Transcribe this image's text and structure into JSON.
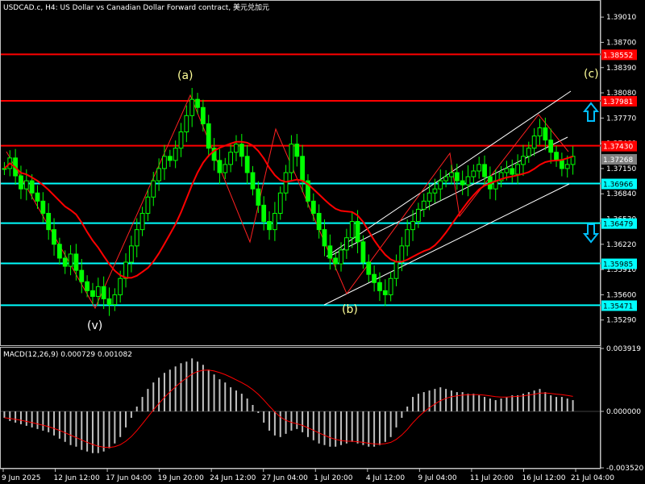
{
  "chart_data": {
    "type": "candlestick",
    "title": "USDCAD.c, H4:  US Dollar vs Canadian Dollar Forward contract, 美元兑加元",
    "symbol": "USDCAD.c",
    "timeframe": "H4",
    "price_axis": {
      "range": [
        1.3498,
        1.392
      ],
      "ticks": [
        "1.39010",
        "1.38700",
        "1.38390",
        "1.38080",
        "1.37770",
        "1.37460",
        "1.37150",
        "1.36840",
        "1.36530",
        "1.36220",
        "1.35910",
        "1.35600",
        "1.35290"
      ]
    },
    "time_axis": {
      "labels": [
        "9 Jun 2025",
        "12 Jun 12:00",
        "17 Jun 04:00",
        "19 Jun 20:00",
        "24 Jun 12:00",
        "27 Jun 04:00",
        "1 Jul 20:00",
        "4 Jul 12:00",
        "9 Jul 04:00",
        "11 Jul 20:00",
        "16 Jul 12:00",
        "21 Jul 04:00"
      ]
    },
    "close_series": [
      1.3715,
      1.3728,
      1.3706,
      1.369,
      1.37,
      1.3685,
      1.3675,
      1.366,
      1.364,
      1.3622,
      1.3605,
      1.3595,
      1.361,
      1.359,
      1.3576,
      1.3565,
      1.3558,
      1.357,
      1.3555,
      1.3548,
      1.356,
      1.358,
      1.36,
      1.362,
      1.364,
      1.366,
      1.368,
      1.37,
      1.3715,
      1.373,
      1.3725,
      1.374,
      1.376,
      1.378,
      1.38,
      1.379,
      1.377,
      1.374,
      1.3725,
      1.371,
      1.372,
      1.3735,
      1.3745,
      1.373,
      1.371,
      1.369,
      1.367,
      1.365,
      1.364,
      1.366,
      1.3685,
      1.371,
      1.3745,
      1.373,
      1.37,
      1.3675,
      1.366,
      1.364,
      1.362,
      1.3605,
      1.3598,
      1.3615,
      1.363,
      1.365,
      1.3625,
      1.36,
      1.3585,
      1.3575,
      1.3565,
      1.356,
      1.358,
      1.36,
      1.362,
      1.364,
      1.365,
      1.3665,
      1.3675,
      1.3685,
      1.369,
      1.37,
      1.3705,
      1.371,
      1.37,
      1.3695,
      1.3705,
      1.3712,
      1.372,
      1.3705,
      1.369,
      1.37,
      1.371,
      1.3715,
      1.3708,
      1.372,
      1.373,
      1.374,
      1.3755,
      1.3765,
      1.375,
      1.3735,
      1.3725,
      1.3715,
      1.372,
      1.373
    ],
    "horizontal_levels": [
      {
        "price": "1.38552",
        "color": "#ff0000"
      },
      {
        "price": "1.37981",
        "color": "#ff0000"
      },
      {
        "price": "1.37430",
        "color": "#ff0000"
      },
      {
        "price": "1.36966",
        "color": "#00ffff"
      },
      {
        "price": "1.36479",
        "color": "#00ffff"
      },
      {
        "price": "1.35985",
        "color": "#00ffff"
      },
      {
        "price": "1.35471",
        "color": "#00ffff"
      }
    ],
    "current_price": "1.37268",
    "wave_labels": [
      "(a)",
      "(v)",
      "(b)",
      "(c)"
    ],
    "macd": {
      "label": "MACD(12,26,9) 0.000729 0.001082",
      "range": [
        -0.00352,
        0.003919
      ],
      "ticks": [
        "0.003919",
        "0.000000",
        "-0.003520"
      ],
      "histogram": [
        -0.0004,
        -0.0006,
        -0.0007,
        -0.0008,
        -0.0009,
        -0.001,
        -0.0011,
        -0.0012,
        -0.0013,
        -0.0015,
        -0.0017,
        -0.0019,
        -0.0021,
        -0.0022,
        -0.0024,
        -0.0025,
        -0.0026,
        -0.0026,
        -0.0025,
        -0.0023,
        -0.002,
        -0.0016,
        -0.001,
        -0.0004,
        0.0003,
        0.0009,
        0.0014,
        0.0018,
        0.0021,
        0.0024,
        0.0026,
        0.0028,
        0.003,
        0.0031,
        0.0033,
        0.0031,
        0.0029,
        0.0026,
        0.0023,
        0.002,
        0.0018,
        0.0015,
        0.0013,
        0.0011,
        0.0008,
        0.0004,
        -0.0001,
        -0.0007,
        -0.0012,
        -0.0015,
        -0.0016,
        -0.0014,
        -0.0012,
        -0.0011,
        -0.0013,
        -0.0016,
        -0.0018,
        -0.002,
        -0.0021,
        -0.0022,
        -0.0022,
        -0.0021,
        -0.002,
        -0.0019,
        -0.002,
        -0.0021,
        -0.0022,
        -0.0022,
        -0.0021,
        -0.0019,
        -0.0016,
        -0.001,
        -0.0004,
        0.0003,
        0.0009,
        0.0011,
        0.0012,
        0.0013,
        0.0014,
        0.0015,
        0.0014,
        0.0013,
        0.0012,
        0.0012,
        0.0011,
        0.0011,
        0.001,
        0.0009,
        0.0008,
        0.0007,
        0.0008,
        0.0009,
        0.001,
        0.001,
        0.0011,
        0.0012,
        0.0013,
        0.0014,
        0.0012,
        0.001,
        0.0009,
        0.0009,
        0.0008,
        0.0007
      ]
    }
  }
}
